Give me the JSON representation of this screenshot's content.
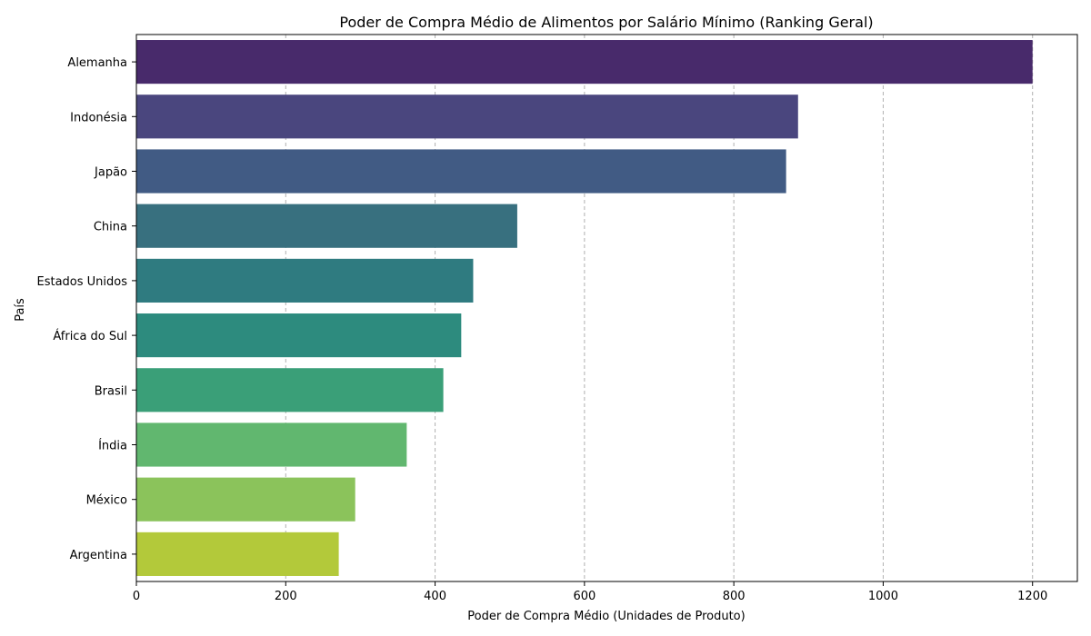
{
  "chart_data": {
    "type": "bar",
    "orientation": "horizontal",
    "title": "Poder de Compra Médio de Alimentos por Salário Mínimo (Ranking Geral)",
    "xlabel": "Poder de Compra Médio (Unidades de Produto)",
    "ylabel": "País",
    "xlim": [
      0,
      1260
    ],
    "xticks": [
      0,
      200,
      400,
      600,
      800,
      1000,
      1200
    ],
    "grid": "x-dashed",
    "categories": [
      "Alemanha",
      "Indonésia",
      "Japão",
      "China",
      "Estados Unidos",
      "África do Sul",
      "Brasil",
      "Índia",
      "México",
      "Argentina"
    ],
    "values": [
      1200,
      886,
      870,
      510,
      451,
      435,
      411,
      362,
      293,
      271
    ],
    "colors": [
      "#482a6b",
      "#4a467e",
      "#415b84",
      "#38707f",
      "#2f7b80",
      "#2d8b7e",
      "#3a9f78",
      "#61b76f",
      "#8bc35b",
      "#b3c93a"
    ]
  }
}
